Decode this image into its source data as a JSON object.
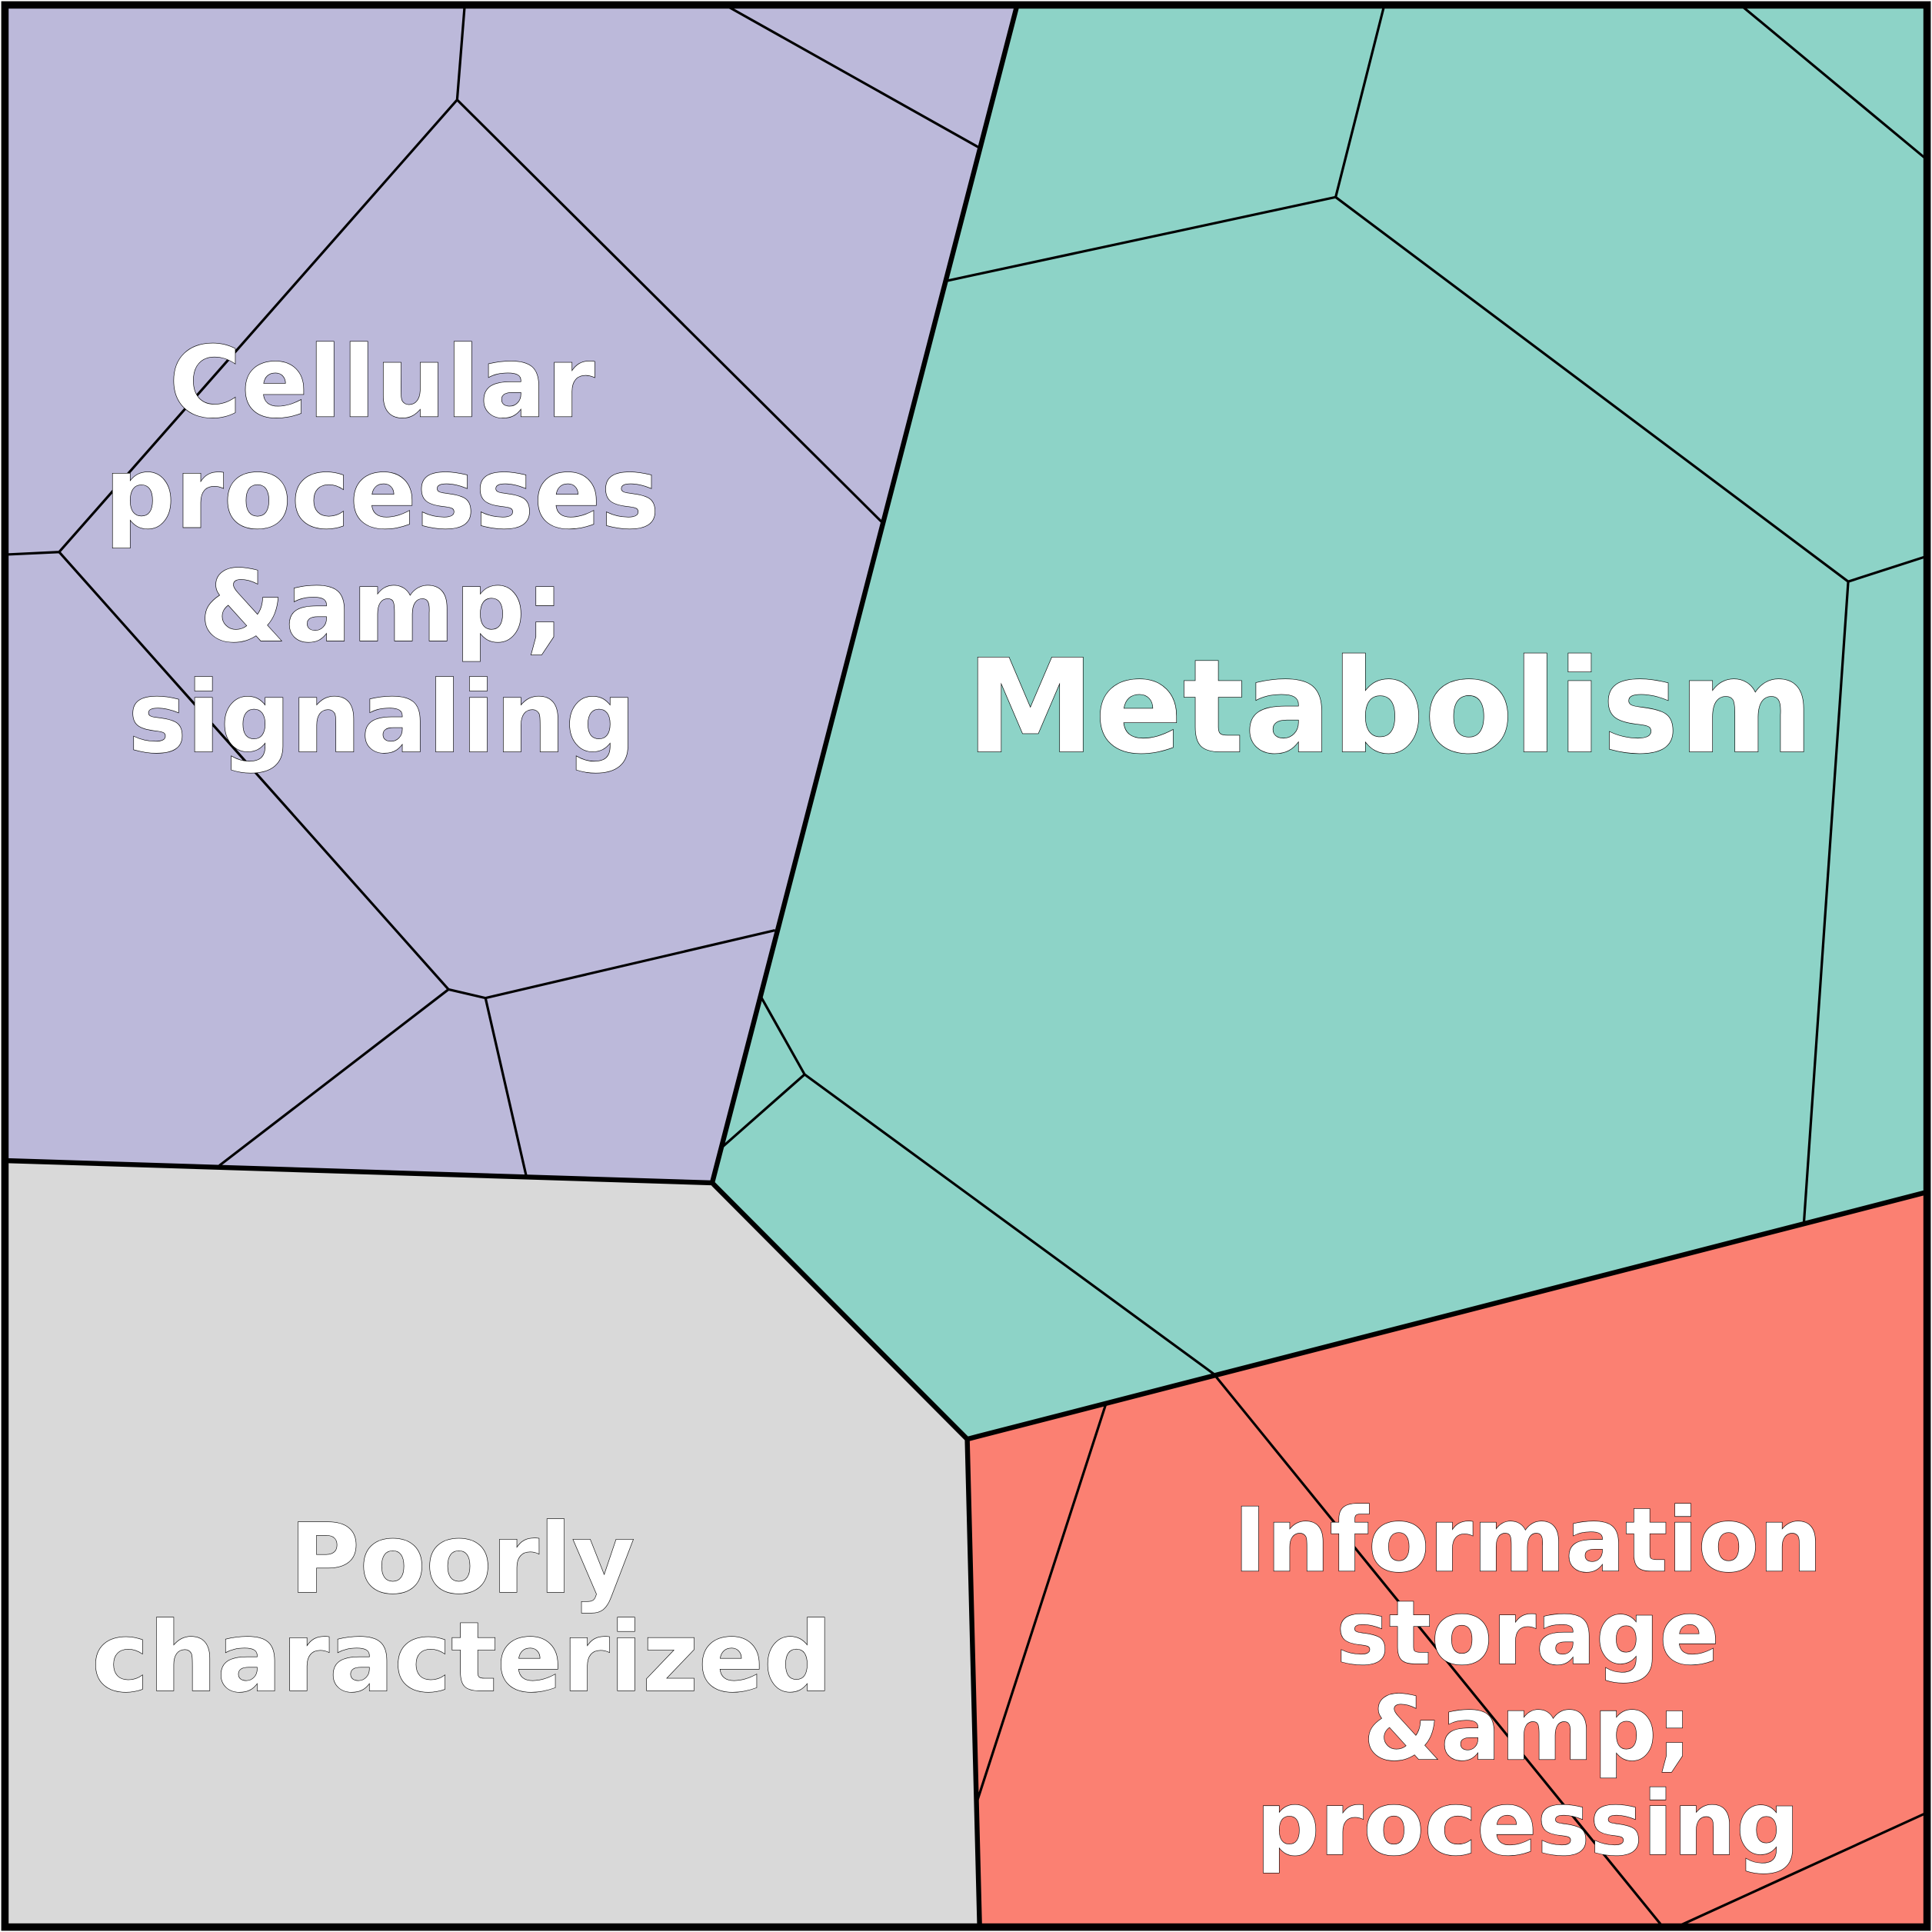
{
  "chart_data": {
    "type": "voronoi-treemap",
    "regions": [
      {
        "label_lines": [
          "Cellular",
          "processes",
          "&amp;",
          "signaling"
        ],
        "color": "#bcb9da"
      },
      {
        "label_lines": [
          "Metabolism"
        ],
        "color": "#8dd3c7"
      },
      {
        "label_lines": [
          "Poorly",
          "characterized"
        ],
        "color": "#d9d9d9"
      },
      {
        "label_lines": [
          "Information",
          "storage",
          "&amp;",
          "processing"
        ],
        "color": "#fb8072"
      }
    ]
  }
}
